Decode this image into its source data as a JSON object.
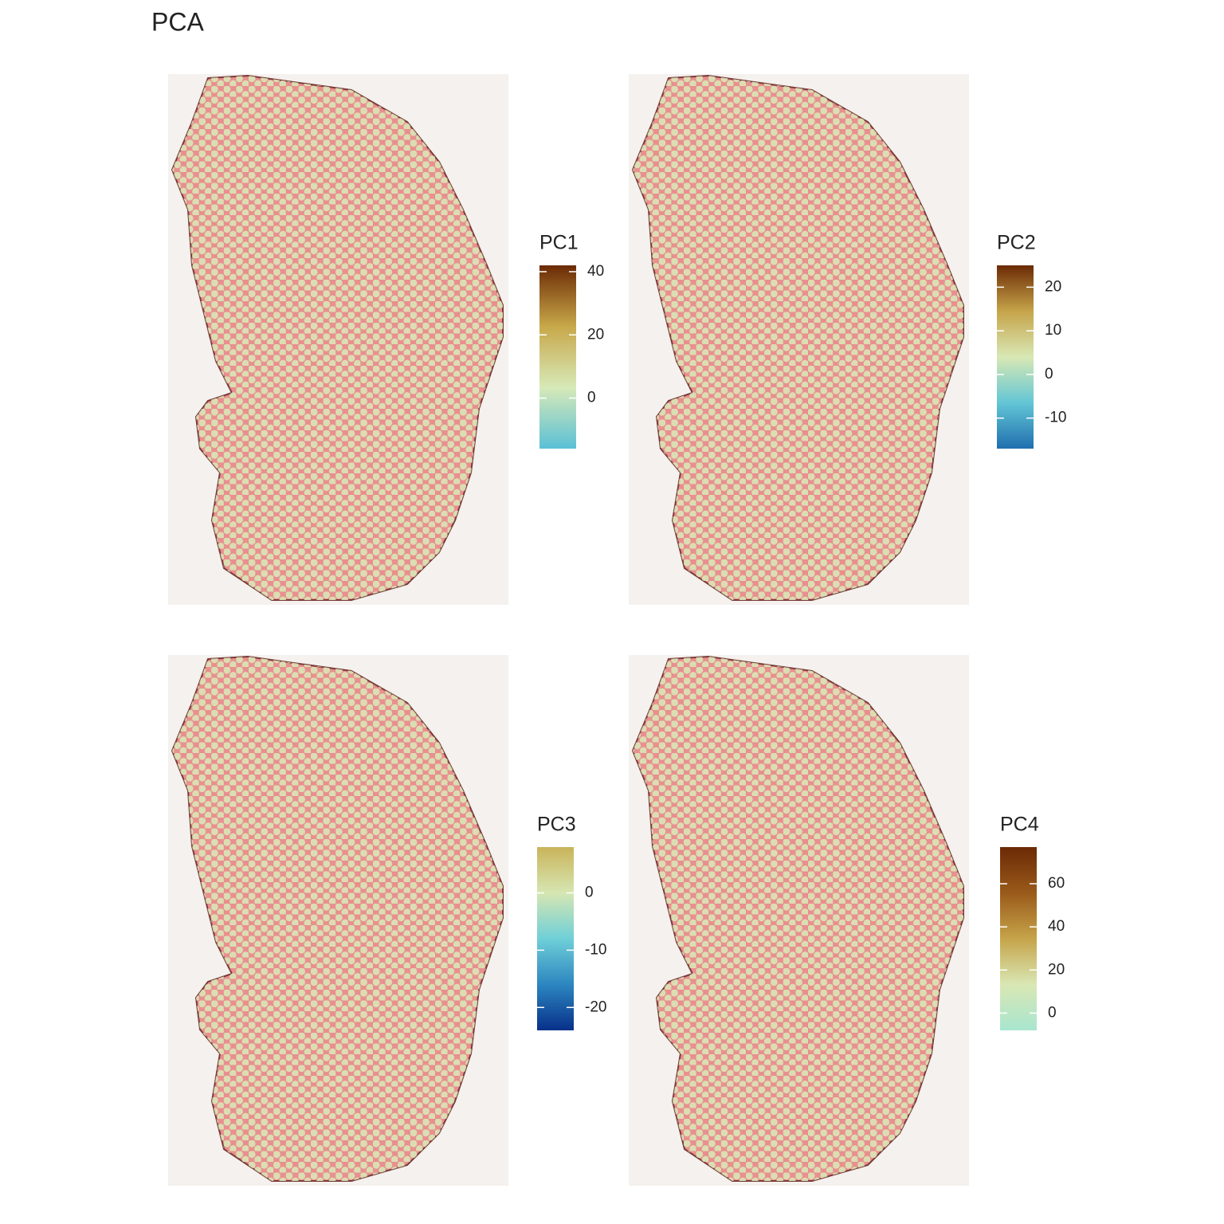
{
  "title": "PCA",
  "chart_data": [
    {
      "type": "spatial",
      "legend_title": "PC1",
      "clim": [
        -16,
        42
      ],
      "cticks": [
        0,
        20,
        40
      ],
      "colors": [
        "#5bc0d6",
        "#d7e9b8",
        "#c8a84a",
        "#6b2a05"
      ]
    },
    {
      "type": "spatial",
      "legend_title": "PC2",
      "clim": [
        -17,
        25
      ],
      "cticks": [
        -10,
        0,
        10,
        20
      ],
      "colors": [
        "#1f6fae",
        "#63c6d6",
        "#d8e8b4",
        "#c6a44a",
        "#6b2a05"
      ]
    },
    {
      "type": "spatial",
      "legend_title": "PC3",
      "clim": [
        -24,
        8
      ],
      "cticks": [
        -20,
        -10,
        0
      ],
      "colors": [
        "#08308a",
        "#2c86c0",
        "#6fcfd8",
        "#d6e6b2",
        "#c9b45a"
      ]
    },
    {
      "type": "spatial",
      "legend_title": "PC4",
      "clim": [
        -8,
        77
      ],
      "cticks": [
        0,
        20,
        40,
        60
      ],
      "colors": [
        "#a8e6cf",
        "#d9e7b4",
        "#c6a44a",
        "#9a5a1a",
        "#6b2a05"
      ]
    }
  ]
}
